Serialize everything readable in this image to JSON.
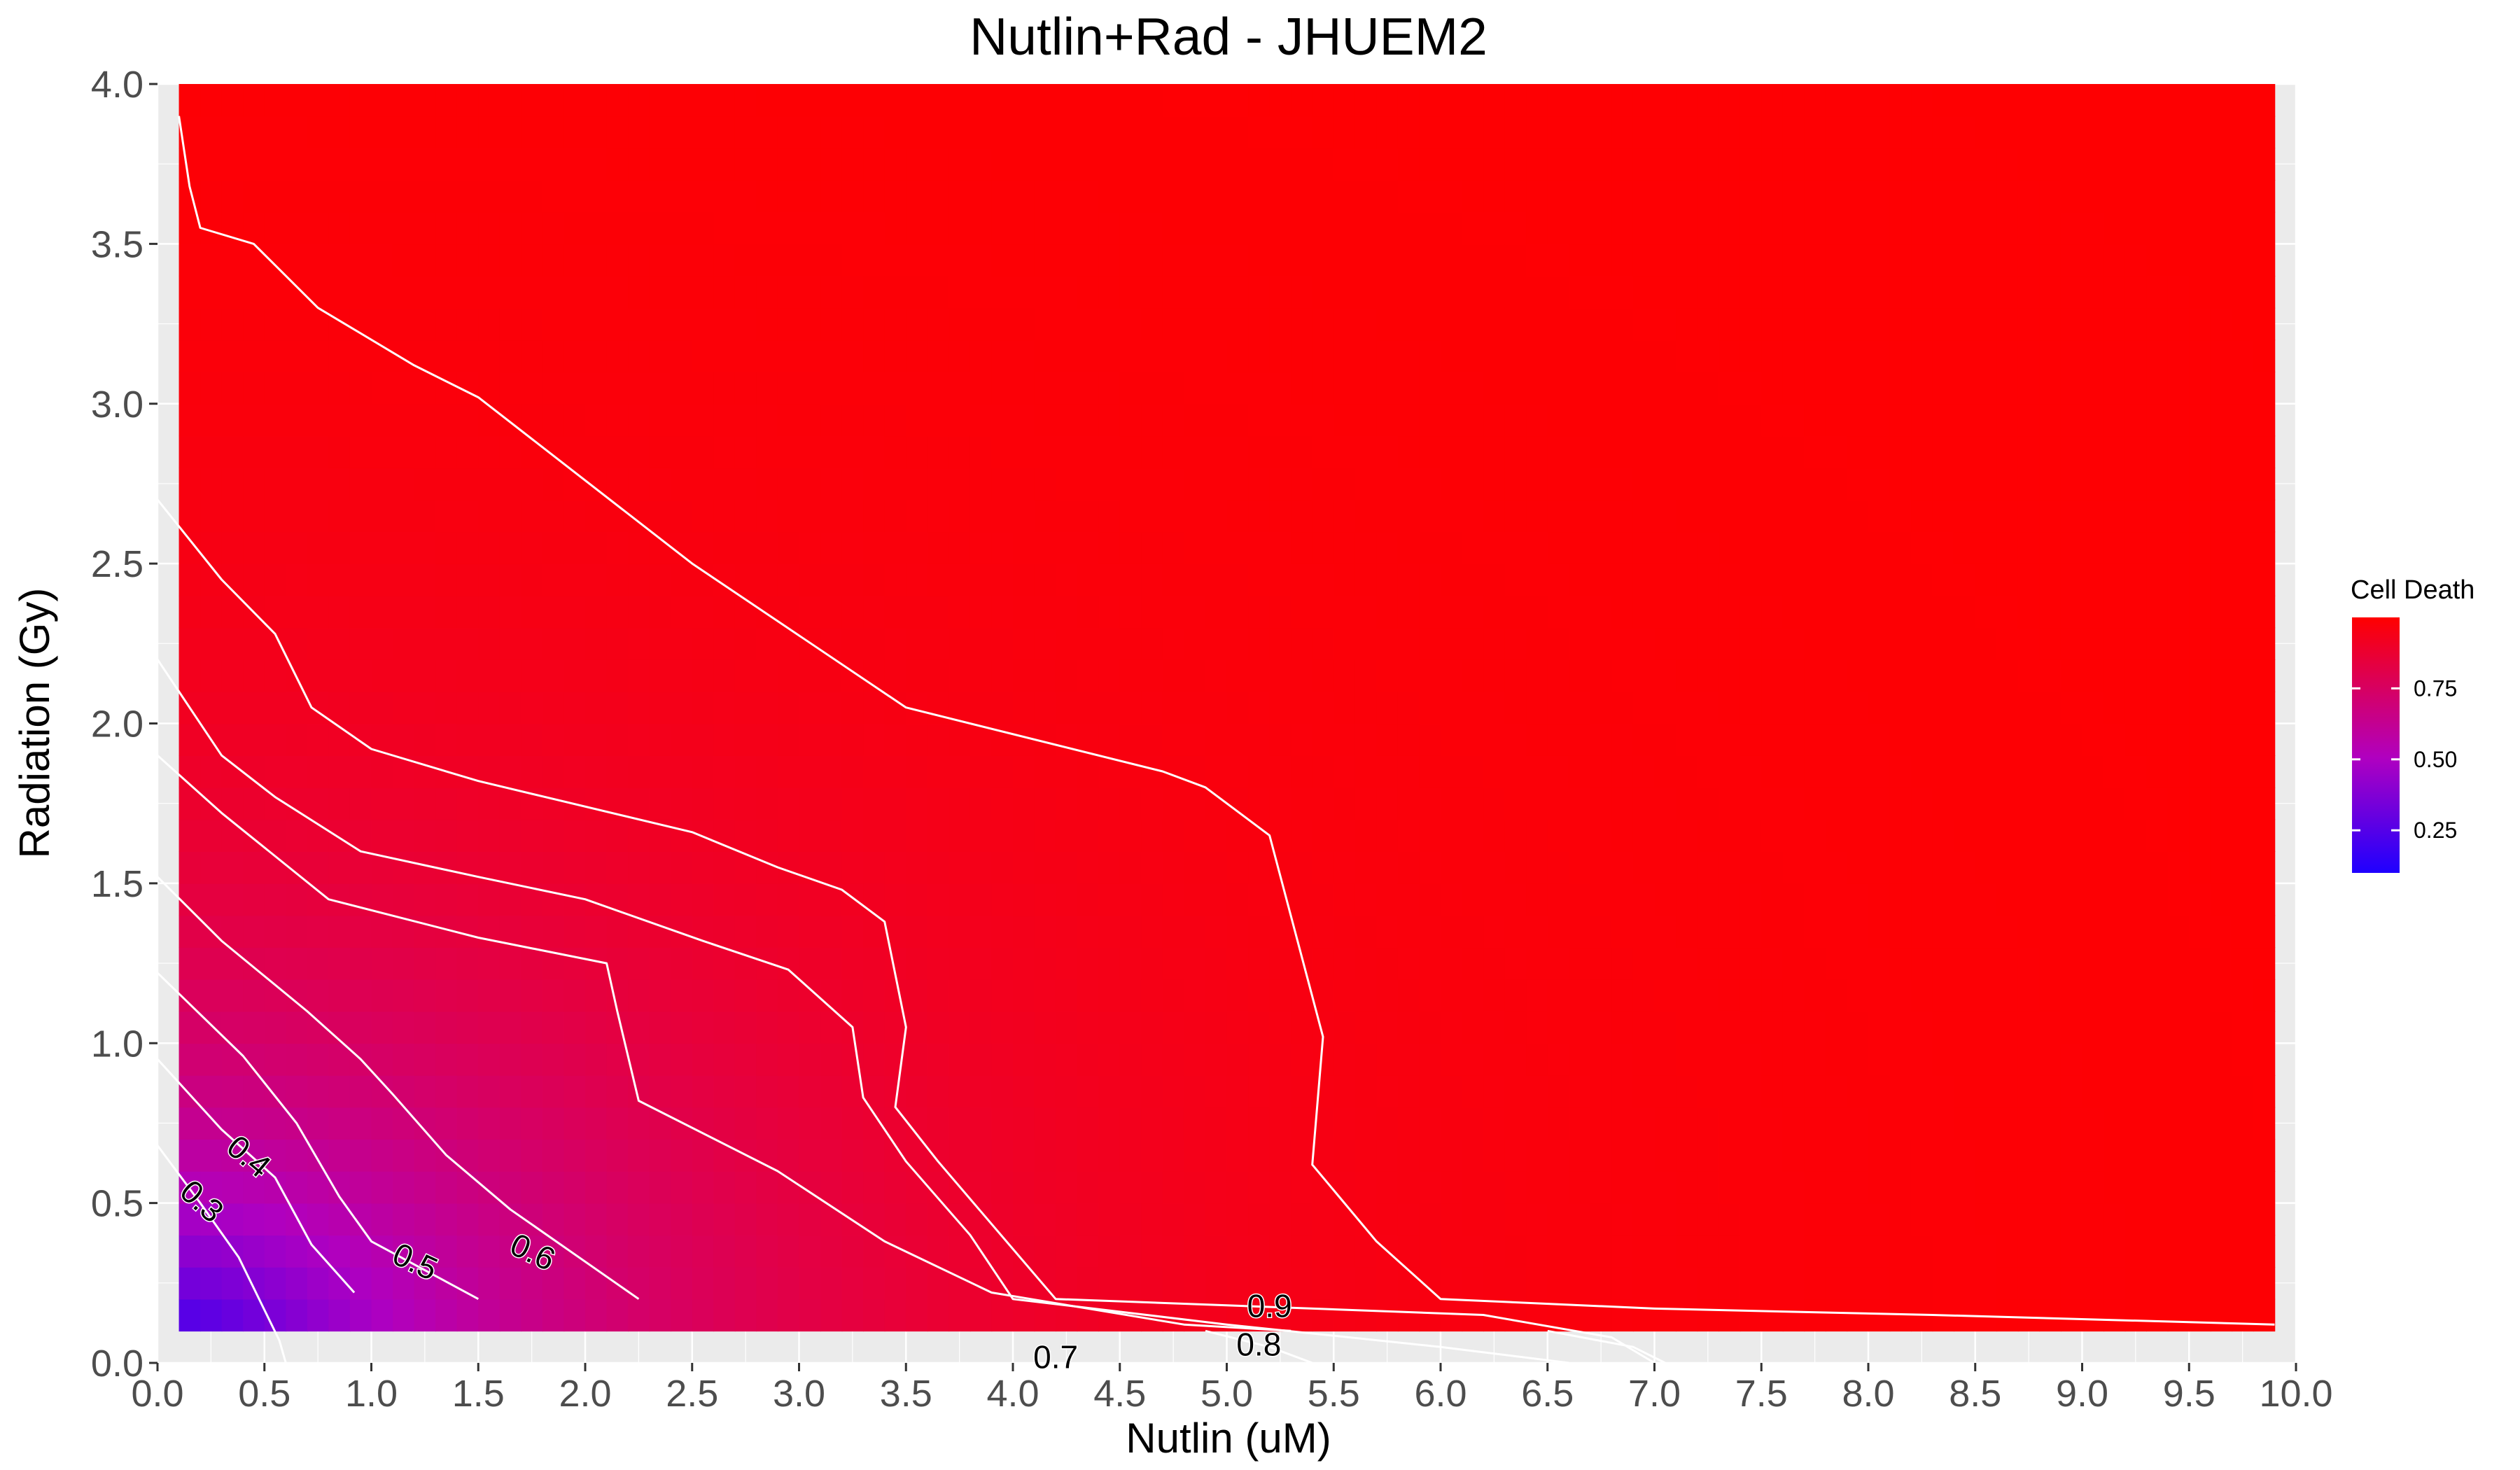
{
  "chart_data": {
    "type": "heatmap",
    "title": "Nutlin+Rad - JHUEM2",
    "xlabel": "Nutlin (uM)",
    "ylabel": "Radiation (Gy)",
    "xlim": [
      0,
      10
    ],
    "ylim": [
      0,
      4
    ],
    "x_ticks": [
      "0.0",
      "0.5",
      "1.0",
      "1.5",
      "2.0",
      "2.5",
      "3.0",
      "3.5",
      "4.0",
      "4.5",
      "5.0",
      "5.5",
      "6.0",
      "6.5",
      "7.0",
      "7.5",
      "8.0",
      "8.5",
      "9.0",
      "9.5",
      "10.0"
    ],
    "y_ticks": [
      "0.0",
      "0.5",
      "1.0",
      "1.5",
      "2.0",
      "2.5",
      "3.0",
      "3.5",
      "4.0"
    ],
    "grid": true,
    "data_extent": {
      "x": [
        0.1,
        9.9
      ],
      "y": [
        0.1,
        4.0
      ]
    },
    "legend": {
      "title": "Cell Death",
      "position": "right",
      "range": [
        0.1,
        1.0
      ],
      "labels": [
        "0.25",
        "0.50",
        "0.75"
      ],
      "label_values": [
        0.25,
        0.5,
        0.75
      ],
      "low_color": "#1f00ff",
      "mid_color": "#b000c0",
      "high_color": "#ff0000"
    },
    "contours": [
      {
        "level": "0.3",
        "label": "0.3",
        "label_at": [
          0.2,
          0.5
        ],
        "label_angle": 42,
        "points": [
          [
            0,
            0.68
          ],
          [
            0.2,
            0.5
          ],
          [
            0.38,
            0.33
          ],
          [
            0.57,
            0.07
          ],
          [
            0.6,
            0
          ]
        ]
      },
      {
        "level": "0.4",
        "label": "0.4",
        "label_at": [
          0.42,
          0.64
        ],
        "label_angle": 40,
        "points": [
          [
            0,
            0.95
          ],
          [
            0.3,
            0.73
          ],
          [
            0.55,
            0.58
          ],
          [
            0.72,
            0.37
          ],
          [
            0.92,
            0.22
          ]
        ]
      },
      {
        "level": "0.5",
        "label": "0.5",
        "label_at": [
          1.2,
          0.31
        ],
        "label_angle": 25,
        "points": [
          [
            0,
            1.22
          ],
          [
            0.4,
            0.96
          ],
          [
            0.65,
            0.75
          ],
          [
            0.85,
            0.52
          ],
          [
            1.0,
            0.38
          ],
          [
            1.5,
            0.2
          ]
        ]
      },
      {
        "level": "0.6",
        "label": "0.6",
        "label_at": [
          1.75,
          0.34
        ],
        "label_angle": 25,
        "points": [
          [
            0,
            1.52
          ],
          [
            0.3,
            1.32
          ],
          [
            0.7,
            1.1
          ],
          [
            0.95,
            0.95
          ],
          [
            1.1,
            0.84
          ],
          [
            1.35,
            0.65
          ],
          [
            1.65,
            0.48
          ],
          [
            2.25,
            0.2
          ]
        ]
      },
      {
        "level": "0.7",
        "label": "0.7",
        "label_at": [
          4.2,
          0.01
        ],
        "label_angle": 0,
        "points": [
          [
            0,
            1.9
          ],
          [
            0.3,
            1.72
          ],
          [
            0.8,
            1.45
          ],
          [
            1.5,
            1.33
          ],
          [
            2.1,
            1.25
          ],
          [
            2.15,
            1.1
          ],
          [
            2.25,
            0.82
          ],
          [
            2.9,
            0.6
          ],
          [
            3.4,
            0.38
          ],
          [
            3.9,
            0.22
          ],
          [
            4.8,
            0.12
          ],
          [
            5.3,
            0.1
          ]
        ]
      },
      {
        "level": "0.8",
        "label": "0.8",
        "label_at": [
          5.15,
          0.05
        ],
        "label_angle": 0,
        "points": [
          [
            0,
            2.2
          ],
          [
            0.3,
            1.9
          ],
          [
            0.55,
            1.77
          ],
          [
            0.95,
            1.6
          ],
          [
            1.5,
            1.52
          ],
          [
            2.0,
            1.45
          ],
          [
            2.55,
            1.32
          ],
          [
            2.95,
            1.23
          ],
          [
            3.25,
            1.05
          ],
          [
            3.3,
            0.83
          ],
          [
            3.5,
            0.63
          ],
          [
            3.8,
            0.4
          ],
          [
            4.0,
            0.2
          ],
          [
            5.0,
            0.12
          ],
          [
            6.0,
            0.05
          ],
          [
            6.6,
            0
          ]
        ]
      },
      {
        "level": "0.9",
        "label": "0.9",
        "label_at": [
          5.2,
          0.17
        ],
        "label_angle": 0,
        "points": [
          [
            0,
            2.7
          ],
          [
            0.3,
            2.45
          ],
          [
            0.55,
            2.28
          ],
          [
            0.72,
            2.05
          ],
          [
            1.0,
            1.92
          ],
          [
            1.5,
            1.82
          ],
          [
            2.5,
            1.66
          ],
          [
            2.9,
            1.55
          ],
          [
            3.2,
            1.48
          ],
          [
            3.4,
            1.38
          ],
          [
            3.5,
            1.05
          ],
          [
            3.45,
            0.8
          ],
          [
            3.65,
            0.63
          ],
          [
            4.2,
            0.2
          ],
          [
            5.0,
            0.18
          ],
          [
            6.2,
            0.15
          ],
          [
            6.8,
            0.08
          ],
          [
            7.0,
            0
          ]
        ]
      },
      {
        "level": "0.95",
        "label": "",
        "label_at": null,
        "label_angle": 0,
        "points": [
          [
            0.1,
            3.9
          ],
          [
            0.15,
            3.68
          ],
          [
            0.2,
            3.55
          ],
          [
            0.45,
            3.5
          ],
          [
            0.75,
            3.3
          ],
          [
            1.2,
            3.12
          ],
          [
            1.5,
            3.02
          ],
          [
            2.5,
            2.5
          ],
          [
            3.5,
            2.05
          ],
          [
            4.7,
            1.85
          ],
          [
            4.9,
            1.8
          ],
          [
            5.2,
            1.65
          ],
          [
            5.45,
            1.02
          ],
          [
            5.4,
            0.62
          ],
          [
            5.7,
            0.38
          ],
          [
            6.0,
            0.2
          ],
          [
            7.0,
            0.17
          ],
          [
            8.3,
            0.15
          ],
          [
            9.9,
            0.12
          ]
        ]
      }
    ],
    "boundary_lines": [
      {
        "points": [
          [
            4.9,
            0.1
          ],
          [
            5.2,
            0.05
          ],
          [
            5.4,
            0
          ]
        ]
      },
      {
        "points": [
          [
            6.5,
            0.1
          ],
          [
            6.9,
            0.05
          ],
          [
            7.05,
            0
          ]
        ]
      }
    ]
  }
}
